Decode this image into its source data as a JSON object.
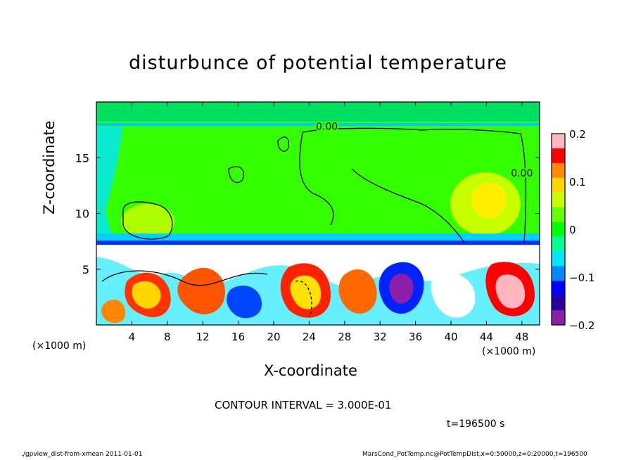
{
  "chart_data": {
    "type": "heatmap",
    "title": "disturbunce of potential temperature",
    "xlabel": "X-coordinate",
    "ylabel": "Z-coordinate",
    "x_unit": "(×1000 m)",
    "x_unit_right": "(×1000 m)",
    "xlim": [
      0,
      50
    ],
    "ylim": [
      0,
      20
    ],
    "x_ticks": [
      4,
      8,
      12,
      16,
      20,
      24,
      28,
      32,
      36,
      40,
      44,
      48
    ],
    "y_ticks": [
      5,
      10,
      15
    ],
    "colorbar": {
      "range": [
        -0.2,
        0.2
      ],
      "ticks": [
        "0.2",
        "0.1",
        "0",
        "−0.1",
        "−0.2"
      ],
      "tick_values": [
        0.2,
        0.1,
        0,
        -0.1,
        -0.2
      ],
      "colors": [
        "#ffb6c1",
        "#ff0000",
        "#ff8c00",
        "#ffd700",
        "#c8ff00",
        "#66ff00",
        "#00ff00",
        "#00ff99",
        "#00e5ff",
        "#0088ff",
        "#0000ff",
        "#2a00a0",
        "#8b1fa8"
      ]
    },
    "contour_labels": [
      {
        "text": "0.00",
        "x": 26,
        "z": 17.5
      },
      {
        "text": "0.00",
        "x": 48,
        "z": 13.3
      }
    ],
    "contour_interval": "CONTOUR INTERVAL = 3.000E-01",
    "time": "t=196500 s"
  },
  "footer": {
    "left": "./gpview_dist-from-xmean  2011-01-01",
    "right": "MarsCond_PotTemp.nc@PotTempDist,x=0:50000,z=0:20000,t=196500"
  }
}
